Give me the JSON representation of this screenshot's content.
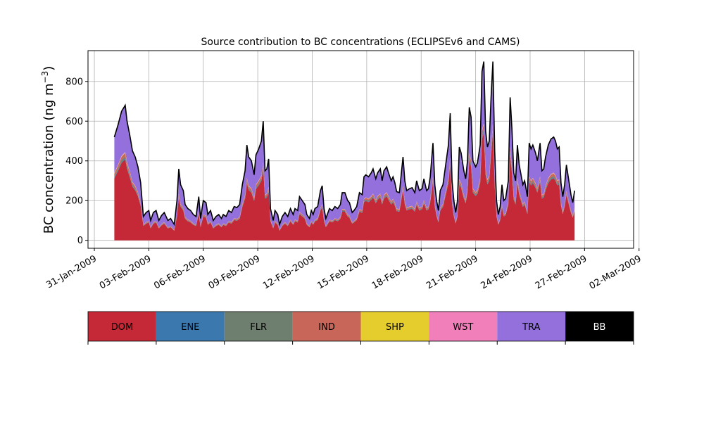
{
  "chart_data": {
    "type": "area",
    "stacked": true,
    "title": "Source contribution to BC concentrations (ECLIPSEv6 and CAMS)",
    "ylabel": "BC concentration (ng m⁻³)",
    "xlabel": "",
    "x_range": [
      -0.35,
      29.7
    ],
    "ylim": [
      -40,
      955
    ],
    "yticks": [
      0,
      200,
      400,
      600,
      800
    ],
    "x_tick_labels": [
      "31-Jan-2009",
      "03-Feb-2009",
      "06-Feb-2009",
      "09-Feb-2009",
      "12-Feb-2009",
      "15-Feb-2009",
      "18-Feb-2009",
      "21-Feb-2009",
      "24-Feb-2009",
      "27-Feb-2009",
      "02-Mar-2009"
    ],
    "x_tick_days": [
      0,
      3,
      6,
      9,
      12,
      15,
      18,
      21,
      24,
      27,
      30
    ],
    "grid": true,
    "legend_placement": "bottom",
    "legend": [
      {
        "label": "DOM",
        "color": "#c52836"
      },
      {
        "label": "ENE",
        "color": "#3a78ae"
      },
      {
        "label": "FLR",
        "color": "#6f7f6f"
      },
      {
        "label": "IND",
        "color": "#c8665a"
      },
      {
        "label": "SHP",
        "color": "#e6cd2e"
      },
      {
        "label": "WST",
        "color": "#f17fba"
      },
      {
        "label": "TRA",
        "color": "#9370db"
      },
      {
        "label": "BB",
        "color": "#000000"
      }
    ],
    "total_points": [
      [
        1.1,
        520
      ],
      [
        1.3,
        580
      ],
      [
        1.5,
        650
      ],
      [
        1.7,
        680
      ],
      [
        1.8,
        600
      ],
      [
        1.95,
        530
      ],
      [
        2.1,
        450
      ],
      [
        2.25,
        420
      ],
      [
        2.4,
        370
      ],
      [
        2.55,
        290
      ],
      [
        2.7,
        120
      ],
      [
        2.85,
        140
      ],
      [
        3.0,
        150
      ],
      [
        3.1,
        100
      ],
      [
        3.25,
        140
      ],
      [
        3.4,
        150
      ],
      [
        3.55,
        100
      ],
      [
        3.7,
        125
      ],
      [
        3.85,
        140
      ],
      [
        4.05,
        100
      ],
      [
        4.2,
        110
      ],
      [
        4.4,
        80
      ],
      [
        4.55,
        200
      ],
      [
        4.65,
        360
      ],
      [
        4.75,
        280
      ],
      [
        4.9,
        250
      ],
      [
        5.0,
        180
      ],
      [
        5.15,
        160
      ],
      [
        5.3,
        150
      ],
      [
        5.45,
        130
      ],
      [
        5.6,
        120
      ],
      [
        5.75,
        220
      ],
      [
        5.85,
        110
      ],
      [
        6.0,
        200
      ],
      [
        6.15,
        190
      ],
      [
        6.25,
        130
      ],
      [
        6.4,
        150
      ],
      [
        6.55,
        100
      ],
      [
        6.7,
        120
      ],
      [
        6.85,
        130
      ],
      [
        7.0,
        110
      ],
      [
        7.1,
        130
      ],
      [
        7.25,
        120
      ],
      [
        7.4,
        150
      ],
      [
        7.55,
        140
      ],
      [
        7.7,
        170
      ],
      [
        7.85,
        165
      ],
      [
        8.0,
        180
      ],
      [
        8.15,
        280
      ],
      [
        8.3,
        350
      ],
      [
        8.4,
        480
      ],
      [
        8.5,
        420
      ],
      [
        8.65,
        400
      ],
      [
        8.8,
        330
      ],
      [
        8.9,
        430
      ],
      [
        9.05,
        460
      ],
      [
        9.2,
        500
      ],
      [
        9.3,
        600
      ],
      [
        9.4,
        350
      ],
      [
        9.5,
        360
      ],
      [
        9.6,
        410
      ],
      [
        9.7,
        160
      ],
      [
        9.85,
        100
      ],
      [
        9.95,
        150
      ],
      [
        10.1,
        130
      ],
      [
        10.2,
        80
      ],
      [
        10.35,
        120
      ],
      [
        10.5,
        140
      ],
      [
        10.65,
        120
      ],
      [
        10.8,
        160
      ],
      [
        10.95,
        130
      ],
      [
        11.05,
        160
      ],
      [
        11.2,
        150
      ],
      [
        11.3,
        220
      ],
      [
        11.45,
        200
      ],
      [
        11.6,
        180
      ],
      [
        11.7,
        130
      ],
      [
        11.85,
        110
      ],
      [
        11.95,
        150
      ],
      [
        12.05,
        130
      ],
      [
        12.15,
        160
      ],
      [
        12.3,
        170
      ],
      [
        12.45,
        250
      ],
      [
        12.55,
        275
      ],
      [
        12.65,
        160
      ],
      [
        12.75,
        110
      ],
      [
        12.95,
        160
      ],
      [
        13.1,
        150
      ],
      [
        13.25,
        170
      ],
      [
        13.4,
        160
      ],
      [
        13.55,
        180
      ],
      [
        13.65,
        240
      ],
      [
        13.8,
        240
      ],
      [
        13.95,
        200
      ],
      [
        14.05,
        190
      ],
      [
        14.2,
        140
      ],
      [
        14.3,
        150
      ],
      [
        14.45,
        170
      ],
      [
        14.6,
        240
      ],
      [
        14.75,
        230
      ],
      [
        14.85,
        320
      ],
      [
        14.95,
        330
      ],
      [
        15.1,
        320
      ],
      [
        15.25,
        340
      ],
      [
        15.35,
        360
      ],
      [
        15.5,
        310
      ],
      [
        15.6,
        340
      ],
      [
        15.75,
        360
      ],
      [
        15.85,
        300
      ],
      [
        15.95,
        350
      ],
      [
        16.1,
        370
      ],
      [
        16.2,
        340
      ],
      [
        16.35,
        300
      ],
      [
        16.45,
        320
      ],
      [
        16.55,
        290
      ],
      [
        16.65,
        245
      ],
      [
        16.8,
        240
      ],
      [
        16.9,
        330
      ],
      [
        17.0,
        420
      ],
      [
        17.1,
        300
      ],
      [
        17.2,
        250
      ],
      [
        17.35,
        260
      ],
      [
        17.5,
        265
      ],
      [
        17.65,
        240
      ],
      [
        17.75,
        300
      ],
      [
        17.9,
        250
      ],
      [
        18.05,
        260
      ],
      [
        18.15,
        310
      ],
      [
        18.3,
        250
      ],
      [
        18.4,
        260
      ],
      [
        18.5,
        320
      ],
      [
        18.65,
        490
      ],
      [
        18.75,
        280
      ],
      [
        18.85,
        200
      ],
      [
        18.95,
        150
      ],
      [
        19.05,
        250
      ],
      [
        19.2,
        280
      ],
      [
        19.35,
        380
      ],
      [
        19.5,
        480
      ],
      [
        19.6,
        640
      ],
      [
        19.7,
        300
      ],
      [
        19.8,
        200
      ],
      [
        19.9,
        140
      ],
      [
        20.0,
        200
      ],
      [
        20.1,
        470
      ],
      [
        20.2,
        440
      ],
      [
        20.35,
        350
      ],
      [
        20.45,
        310
      ],
      [
        20.55,
        400
      ],
      [
        20.65,
        670
      ],
      [
        20.75,
        620
      ],
      [
        20.85,
        400
      ],
      [
        21.0,
        370
      ],
      [
        21.1,
        390
      ],
      [
        21.25,
        480
      ],
      [
        21.35,
        850
      ],
      [
        21.45,
        900
      ],
      [
        21.55,
        550
      ],
      [
        21.65,
        470
      ],
      [
        21.75,
        500
      ],
      [
        21.85,
        720
      ],
      [
        21.95,
        900
      ],
      [
        22.05,
        450
      ],
      [
        22.15,
        200
      ],
      [
        22.25,
        130
      ],
      [
        22.35,
        170
      ],
      [
        22.45,
        280
      ],
      [
        22.55,
        200
      ],
      [
        22.65,
        210
      ],
      [
        22.8,
        300
      ],
      [
        22.9,
        720
      ],
      [
        23.0,
        560
      ],
      [
        23.1,
        340
      ],
      [
        23.2,
        300
      ],
      [
        23.3,
        480
      ],
      [
        23.4,
        380
      ],
      [
        23.5,
        330
      ],
      [
        23.6,
        280
      ],
      [
        23.7,
        300
      ],
      [
        23.85,
        220
      ],
      [
        23.95,
        490
      ],
      [
        24.05,
        460
      ],
      [
        24.15,
        480
      ],
      [
        24.3,
        440
      ],
      [
        24.4,
        400
      ],
      [
        24.55,
        490
      ],
      [
        24.65,
        350
      ],
      [
        24.75,
        360
      ],
      [
        24.85,
        420
      ],
      [
        25.0,
        480
      ],
      [
        25.15,
        510
      ],
      [
        25.3,
        520
      ],
      [
        25.4,
        500
      ],
      [
        25.5,
        460
      ],
      [
        25.6,
        470
      ],
      [
        25.7,
        290
      ],
      [
        25.8,
        220
      ],
      [
        25.9,
        280
      ],
      [
        26.0,
        380
      ],
      [
        26.1,
        320
      ],
      [
        26.25,
        230
      ],
      [
        26.35,
        190
      ],
      [
        26.45,
        250
      ]
    ],
    "dom_ratio": 0.6,
    "stack_proportions": {
      "ENE": 0.007,
      "FLR": 0.015,
      "IND": 0.025,
      "SHP": 0.003,
      "WST": 0.005,
      "TRA": "remainder",
      "BB": 0.005
    }
  }
}
